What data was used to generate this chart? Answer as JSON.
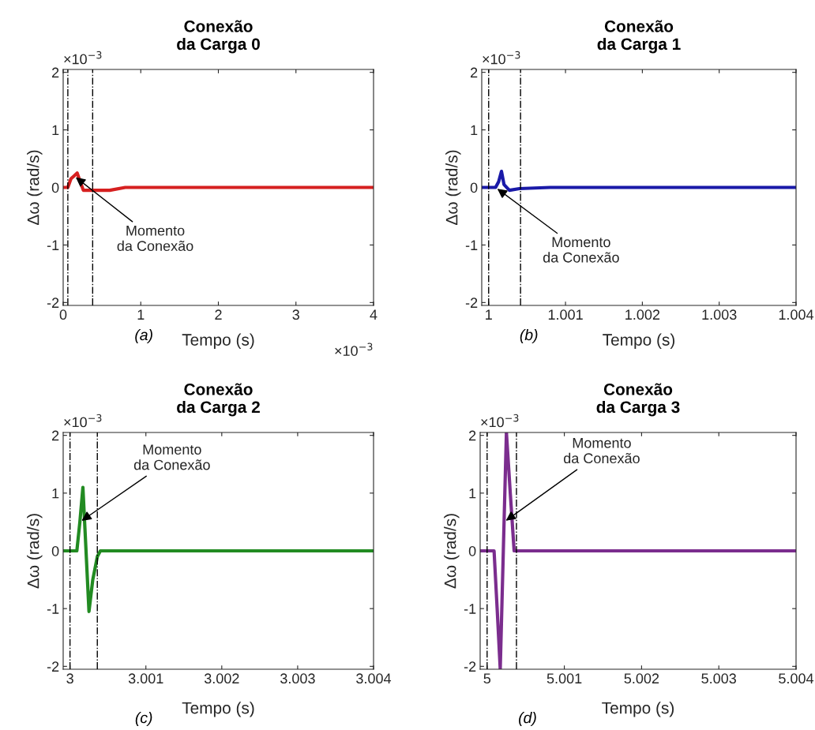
{
  "chart_data": [
    {
      "type": "line",
      "title": "Conexão\nda Carga 0",
      "xlabel": "Tempo (s)",
      "ylabel": "Δω (rad/s)",
      "x": [
        0,
        0.06,
        0.1,
        0.14,
        0.18,
        0.22,
        0.26,
        0.3,
        0.4,
        0.6,
        0.8,
        4
      ],
      "series": [
        {
          "color": "#d62020",
          "values": [
            0,
            0,
            0.15,
            0.2,
            0.25,
            0.1,
            -0.05,
            -0.05,
            -0.05,
            -0.05,
            0,
            0
          ]
        }
      ],
      "xlim": [
        0,
        4
      ],
      "xticks": [
        0,
        1,
        2,
        3,
        4
      ],
      "ylim": [
        -2.05,
        2.05
      ],
      "yticks": [
        -2,
        -1,
        0,
        1,
        2
      ],
      "ref_lines": [
        {
          "axis": "x",
          "value": 0.06,
          "color": "#000000",
          "line_style": "dashdot"
        },
        {
          "axis": "x",
          "value": 0.38,
          "color": "#000000",
          "line_style": "dashdot"
        }
      ],
      "annotations": [
        {
          "text": "Momento\nda Conexão",
          "x": 0.14,
          "y": 0.2
        },
        "(a)",
        "×10$^{−3}$",
        "×10$^{−3}$"
      ],
      "grid": false,
      "legend": false,
      "line_style": "solid"
    },
    {
      "type": "line",
      "title": "Conexão\nda Carga 1",
      "xlabel": "Tempo (s)",
      "ylabel": "Δω (rad/s)",
      "x": [
        0.99991,
        1.0,
        1.00009,
        1.00013,
        1.000167,
        1.0002,
        1.00027,
        1.0004,
        1.0008,
        1.004
      ],
      "series": [
        {
          "color": "#1a1aa8",
          "values": [
            0,
            0,
            0,
            0.1,
            0.28,
            0.05,
            -0.05,
            -0.02,
            0,
            0
          ]
        }
      ],
      "xlim": [
        0.99991,
        1.004
      ],
      "xticks": [
        1,
        1.001,
        1.002,
        1.003,
        1.004
      ],
      "ylim": [
        -2.05,
        2.05
      ],
      "yticks": [
        -2,
        -1,
        0,
        1,
        2
      ],
      "ref_lines": [
        {
          "axis": "x",
          "value": 1.0,
          "color": "#000000",
          "line_style": "dashdot"
        },
        {
          "axis": "x",
          "value": 1.000415,
          "color": "#000000",
          "line_style": "dashdot"
        }
      ],
      "annotations": [
        {
          "text": "Momento\nda Conexão",
          "x": 1.00009,
          "y": 0
        },
        "(b)",
        "×10$^{−3}$"
      ],
      "grid": false,
      "legend": false,
      "line_style": "solid"
    },
    {
      "type": "line",
      "title": "Conexão\nda Carga 2",
      "xlabel": "Tempo (s)",
      "ylabel": "Δω (rad/s)",
      "x": [
        2.99991,
        3.00009,
        3.00013,
        3.00017,
        3.0002,
        3.00025,
        3.0003,
        3.00036,
        3.0004,
        3.004
      ],
      "series": [
        {
          "color": "#228b22",
          "values": [
            0,
            0,
            0.5,
            1.1,
            0.3,
            -1.05,
            -0.5,
            -0.1,
            0,
            0
          ]
        }
      ],
      "xlim": [
        2.99991,
        3.004
      ],
      "xticks": [
        3,
        3.001,
        3.002,
        3.003,
        3.004
      ],
      "ylim": [
        -2.05,
        2.05
      ],
      "yticks": [
        -2,
        -1,
        0,
        1,
        2
      ],
      "ref_lines": [
        {
          "axis": "x",
          "value": 3.0,
          "color": "#000000",
          "line_style": "dashdot"
        },
        {
          "axis": "x",
          "value": 3.00036,
          "color": "#000000",
          "line_style": "dashdot"
        }
      ],
      "annotations": [
        {
          "text": "Momento\nda Conexão",
          "x": 3.00013,
          "y": 0.5
        },
        "(c)",
        "×10$^{−3}$"
      ],
      "grid": false,
      "legend": false,
      "line_style": "solid"
    },
    {
      "type": "line",
      "title": "Conexão\nda Carga 3",
      "xlabel": "Tempo (s)",
      "ylabel": "Δω (rad/s)",
      "x": [
        4.99991,
        5.00009,
        5.00013,
        5.00017,
        5.00021,
        5.00025,
        5.0003,
        5.00035,
        5.0004,
        5.004
      ],
      "series": [
        {
          "color": "#7b2d8e",
          "values": [
            0,
            0,
            -1,
            -2.05,
            0,
            2.05,
            1,
            0,
            0,
            0
          ]
        }
      ],
      "xlim": [
        4.99991,
        5.004
      ],
      "xticks": [
        5,
        5.001,
        5.002,
        5.003,
        5.004
      ],
      "ylim": [
        -2.05,
        2.05
      ],
      "yticks": [
        -2,
        -1,
        0,
        1,
        2
      ],
      "ref_lines": [
        {
          "axis": "x",
          "value": 5.0,
          "color": "#000000",
          "line_style": "dashdot"
        },
        {
          "axis": "x",
          "value": 5.00038,
          "color": "#000000",
          "line_style": "dashdot"
        }
      ],
      "annotations": [
        {
          "text": "Momento\nda Conexão",
          "x": 5.00022,
          "y": 0.5
        },
        "(d)",
        "×10$^{−3}$"
      ],
      "grid": false,
      "legend": false,
      "line_style": "solid"
    }
  ]
}
